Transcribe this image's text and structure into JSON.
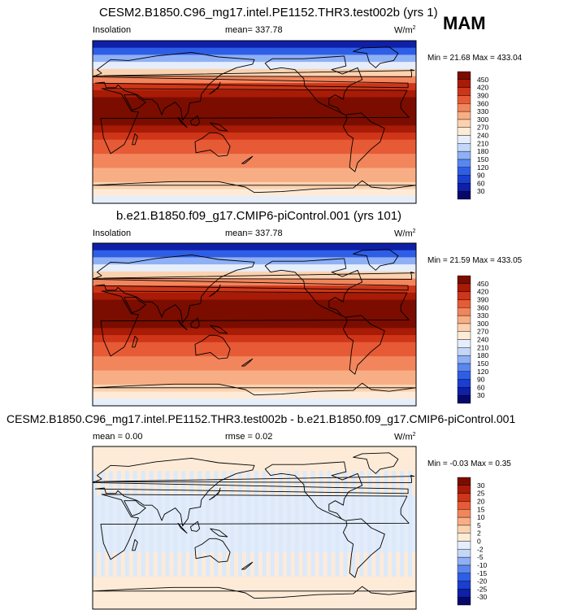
{
  "season": "MAM",
  "chart_data": [
    {
      "type": "heatmap",
      "title": "CESM2.B1850.C96_mg17.intel.PE1152.THR3.test002b (yrs 1)",
      "left_label": "Insolation",
      "center_label": "mean= 337.78",
      "units": "W/m",
      "units_exp": "2",
      "minmax": "Min =  21.68 Max = 433.04",
      "colorbar_levels": [
        "30",
        "60",
        "90",
        "120",
        "150",
        "180",
        "210",
        "240",
        "270",
        "300",
        "330",
        "360",
        "390",
        "420",
        "450"
      ],
      "colors": [
        "#08086b",
        "#0e1fa8",
        "#1a3ed0",
        "#2f5ee6",
        "#5a86f0",
        "#8fb0f5",
        "#c3d8f8",
        "#e6eefb",
        "#fdebd8",
        "#fbd2b0",
        "#f8ae84",
        "#f2855c",
        "#e65a35",
        "#cf3518",
        "#a81b06",
        "#7a0d00"
      ],
      "band_levels": [
        1,
        3,
        5,
        7,
        9,
        11,
        13,
        14,
        15,
        15,
        15,
        15,
        14,
        13,
        12,
        12,
        11,
        11,
        10,
        10,
        9,
        8,
        7
      ]
    },
    {
      "type": "heatmap",
      "title": "b.e21.B1850.f09_g17.CMIP6-piControl.001 (yrs 101)",
      "left_label": "Insolation",
      "center_label": "mean= 337.78",
      "units": "W/m",
      "units_exp": "2",
      "minmax": "Min =  21.59 Max = 433.05",
      "colorbar_levels": [
        "30",
        "60",
        "90",
        "120",
        "150",
        "180",
        "210",
        "240",
        "270",
        "300",
        "330",
        "360",
        "390",
        "420",
        "450"
      ],
      "colors": [
        "#08086b",
        "#0e1fa8",
        "#1a3ed0",
        "#2f5ee6",
        "#5a86f0",
        "#8fb0f5",
        "#c3d8f8",
        "#e6eefb",
        "#fdebd8",
        "#fbd2b0",
        "#f8ae84",
        "#f2855c",
        "#e65a35",
        "#cf3518",
        "#a81b06",
        "#7a0d00"
      ],
      "band_levels": [
        1,
        3,
        5,
        7,
        9,
        11,
        13,
        14,
        15,
        15,
        15,
        15,
        14,
        13,
        12,
        12,
        11,
        11,
        10,
        10,
        9,
        8,
        7
      ]
    },
    {
      "type": "heatmap",
      "title": "CESM2.B1850.C96_mg17.intel.PE1152.THR3.test002b - b.e21.B1850.f09_g17.CMIP6-piControl.001",
      "left_label": "mean =  0.00",
      "center_label": "rmse =  0.02",
      "units": "W/m",
      "units_exp": "2",
      "minmax": "Min =  -0.03 Max =   0.35",
      "colorbar_levels": [
        "-30",
        "-25",
        "-20",
        "-15",
        "-10",
        "-5",
        "-2",
        "0",
        "2",
        "5",
        "10",
        "15",
        "20",
        "25",
        "30"
      ],
      "colors": [
        "#08086b",
        "#0e1fa8",
        "#1a3ed0",
        "#2f5ee6",
        "#5a86f0",
        "#8fb0f5",
        "#c3d8f8",
        "#e6eefb",
        "#fdebd8",
        "#fbd2b0",
        "#f8ae84",
        "#f2855c",
        "#e65a35",
        "#cf3518",
        "#a81b06",
        "#7a0d00"
      ]
    }
  ]
}
